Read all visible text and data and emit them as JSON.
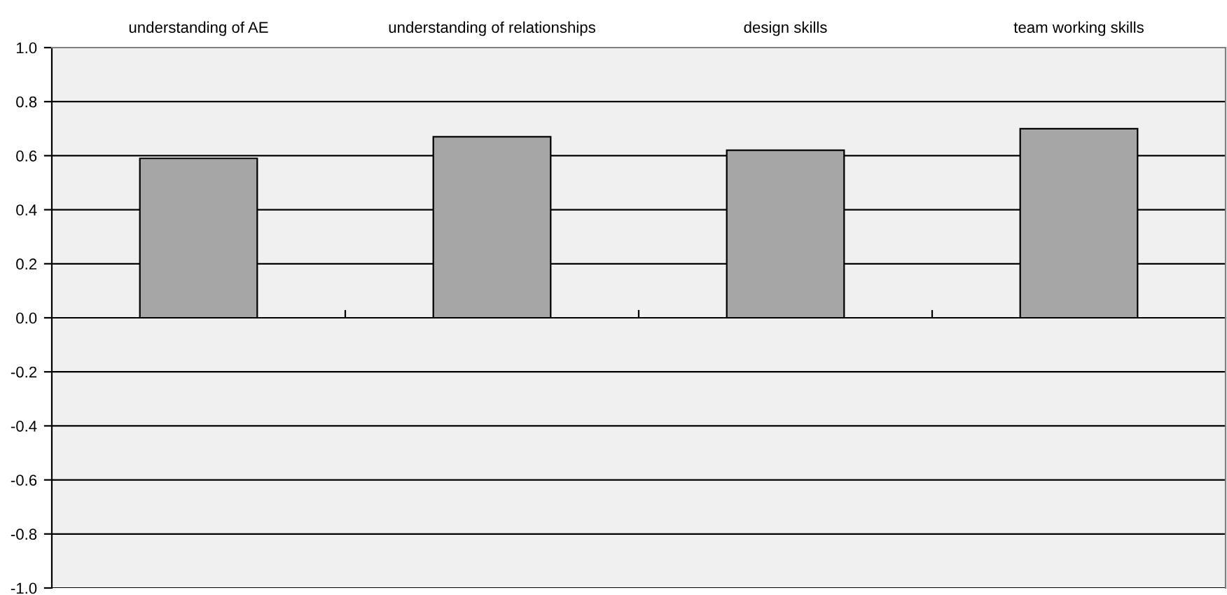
{
  "chart_data": {
    "type": "bar",
    "categories": [
      "understanding of AE",
      "understanding of relationships",
      "design skills",
      "team working skills"
    ],
    "values": [
      0.59,
      0.67,
      0.62,
      0.7
    ],
    "color": "#a6a6a6",
    "ylim": [
      -1.0,
      1.0
    ],
    "yticks": [
      {
        "value": -1.0,
        "label": "-1.0"
      },
      {
        "value": -0.8,
        "label": "-0.8"
      },
      {
        "value": -0.6,
        "label": "-0.6"
      },
      {
        "value": -0.4,
        "label": "-0.4"
      },
      {
        "value": -0.2,
        "label": "-0.2"
      },
      {
        "value": 0.0,
        "label": "0.0"
      },
      {
        "value": 0.2,
        "label": "0.2"
      },
      {
        "value": 0.4,
        "label": "0.4"
      },
      {
        "value": 0.6,
        "label": "0.6"
      },
      {
        "value": 0.8,
        "label": "0.8"
      },
      {
        "value": 1.0,
        "label": "1.0"
      }
    ],
    "grid": "y"
  }
}
